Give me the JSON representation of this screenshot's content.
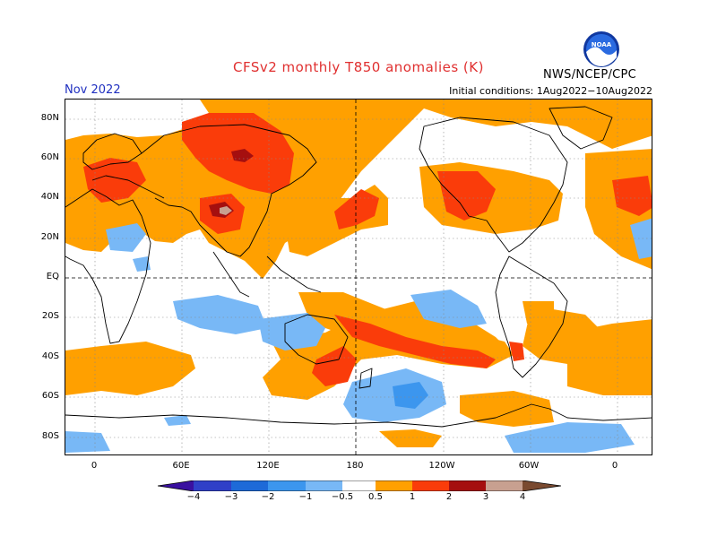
{
  "header": {
    "title": "CFSv2 monthly T850 anomalies (K)",
    "month": "Nov 2022",
    "initial_conditions": "Initial conditions: 1Aug2022−10Aug2022",
    "agency": "NWS/NCEP/CPC",
    "logo_text": "NOAA"
  },
  "axes": {
    "lat_labels": [
      "80N",
      "60N",
      "40N",
      "20N",
      "EQ",
      "20S",
      "40S",
      "60S",
      "80S"
    ],
    "lon_labels": [
      "0",
      "60E",
      "120E",
      "180",
      "120W",
      "60W",
      "0"
    ]
  },
  "colorbar": {
    "ticks": [
      "−4",
      "−3",
      "−2",
      "−1",
      "−0.5",
      "0.5",
      "1",
      "2",
      "3",
      "4"
    ],
    "colors": {
      "lt_minus4": "#3a10a0",
      "minus4_minus3": "#3040c8",
      "minus3_minus2": "#1e6ad8",
      "minus2_minus1": "#3c96ee",
      "minus1_minus05": "#78b8f6",
      "neutral": "#ffffff",
      "p05_1": "#ffa000",
      "p1_2": "#fa3c0a",
      "p2_3": "#a50f0f",
      "p3_4": "#c8a090",
      "gt4": "#7a4a30"
    }
  },
  "colors": {
    "title": "#e03030",
    "month": "#2030c0"
  }
}
